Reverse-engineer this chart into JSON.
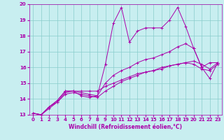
{
  "title": "",
  "xlabel": "Windchill (Refroidissement éolien,°C)",
  "ylabel": "",
  "xlim": [
    -0.5,
    23.5
  ],
  "ylim": [
    13,
    20
  ],
  "xticks": [
    0,
    1,
    2,
    3,
    4,
    5,
    6,
    7,
    8,
    9,
    10,
    11,
    12,
    13,
    14,
    15,
    16,
    17,
    18,
    19,
    20,
    21,
    22,
    23
  ],
  "yticks": [
    13,
    14,
    15,
    16,
    17,
    18,
    19,
    20
  ],
  "bg_color": "#c8eef0",
  "line_color": "#aa00aa",
  "grid_color": "#88cccc",
  "series": [
    {
      "x": [
        0,
        1,
        2,
        3,
        4,
        5,
        6,
        7,
        8,
        9,
        10,
        11,
        12,
        13,
        14,
        15,
        16,
        17,
        18,
        19,
        20,
        21,
        22,
        23
      ],
      "y": [
        13.1,
        13.0,
        13.5,
        13.8,
        14.4,
        14.5,
        14.2,
        14.1,
        14.2,
        16.2,
        18.8,
        19.8,
        17.6,
        18.3,
        18.5,
        18.5,
        18.5,
        19.0,
        19.8,
        18.6,
        17.2,
        16.0,
        16.3,
        16.3
      ]
    },
    {
      "x": [
        0,
        1,
        2,
        3,
        4,
        5,
        6,
        7,
        8,
        9,
        10,
        11,
        12,
        13,
        14,
        15,
        16,
        17,
        18,
        19,
        20,
        21,
        22,
        23
      ],
      "y": [
        13.1,
        13.0,
        13.5,
        13.9,
        14.5,
        14.5,
        14.4,
        14.3,
        14.2,
        15.0,
        15.5,
        15.8,
        16.0,
        16.3,
        16.5,
        16.6,
        16.8,
        17.0,
        17.3,
        17.5,
        17.2,
        16.0,
        15.3,
        16.3
      ]
    },
    {
      "x": [
        0,
        1,
        2,
        3,
        4,
        5,
        6,
        7,
        8,
        9,
        10,
        11,
        12,
        13,
        14,
        15,
        16,
        17,
        18,
        19,
        20,
        21,
        22,
        23
      ],
      "y": [
        13.1,
        13.0,
        13.5,
        13.9,
        14.5,
        14.5,
        14.5,
        14.5,
        14.5,
        14.8,
        15.0,
        15.2,
        15.4,
        15.6,
        15.7,
        15.8,
        15.9,
        16.1,
        16.2,
        16.3,
        16.4,
        16.2,
        15.9,
        16.3
      ]
    },
    {
      "x": [
        0,
        1,
        2,
        3,
        4,
        5,
        6,
        7,
        8,
        9,
        10,
        11,
        12,
        13,
        14,
        15,
        16,
        17,
        18,
        19,
        20,
        21,
        22,
        23
      ],
      "y": [
        13.1,
        13.0,
        13.4,
        13.8,
        14.3,
        14.4,
        14.3,
        14.2,
        14.1,
        14.5,
        14.8,
        15.1,
        15.3,
        15.5,
        15.7,
        15.8,
        16.0,
        16.1,
        16.2,
        16.3,
        16.2,
        15.9,
        15.8,
        16.2
      ]
    }
  ],
  "tick_fontsize": 5.0,
  "xlabel_fontsize": 5.5,
  "linewidth": 0.7,
  "markersize": 3.0,
  "markeredgewidth": 0.7
}
